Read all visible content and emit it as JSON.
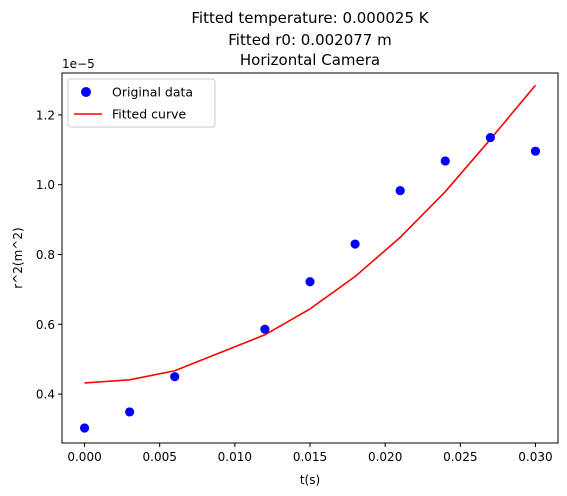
{
  "chart_data": {
    "type": "scatter",
    "title_lines": [
      "Fitted temperature: 0.000025 K",
      "Fitted r0: 0.002077 m",
      "Horizontal Camera"
    ],
    "xlabel": "t(s)",
    "ylabel": "r^2(m^2)",
    "y_offset_label": "1e−5",
    "xlim": [
      -0.0015,
      0.0315
    ],
    "ylim": [
      2.6,
      13.2
    ],
    "x_ticks": [
      0.0,
      0.005,
      0.01,
      0.015,
      0.02,
      0.025,
      0.03
    ],
    "x_tick_labels": [
      "0.000",
      "0.005",
      "0.010",
      "0.015",
      "0.020",
      "0.025",
      "0.030"
    ],
    "y_ticks": [
      4,
      6,
      8,
      10,
      12
    ],
    "y_tick_labels": [
      "0.4",
      "0.6",
      "0.8",
      "1.0",
      "1.2"
    ],
    "grid": false,
    "legend_position": "top-left",
    "series": [
      {
        "name": "Original data",
        "kind": "scatter",
        "color": "#0000ff",
        "x": [
          0.0,
          0.003,
          0.006,
          0.012,
          0.015,
          0.018,
          0.021,
          0.024,
          0.027,
          0.03
        ],
        "y": [
          3.03,
          3.49,
          4.5,
          5.86,
          7.22,
          8.3,
          9.83,
          10.68,
          11.35,
          10.96
        ]
      },
      {
        "name": "Fitted curve",
        "kind": "line",
        "color": "#ff0000",
        "x": [
          0.0,
          0.003,
          0.006,
          0.012,
          0.015,
          0.018,
          0.021,
          0.024,
          0.027,
          0.03
        ],
        "y": [
          4.32,
          4.41,
          4.67,
          5.7,
          6.44,
          7.37,
          8.49,
          9.8,
          11.3,
          12.85
        ]
      }
    ]
  }
}
